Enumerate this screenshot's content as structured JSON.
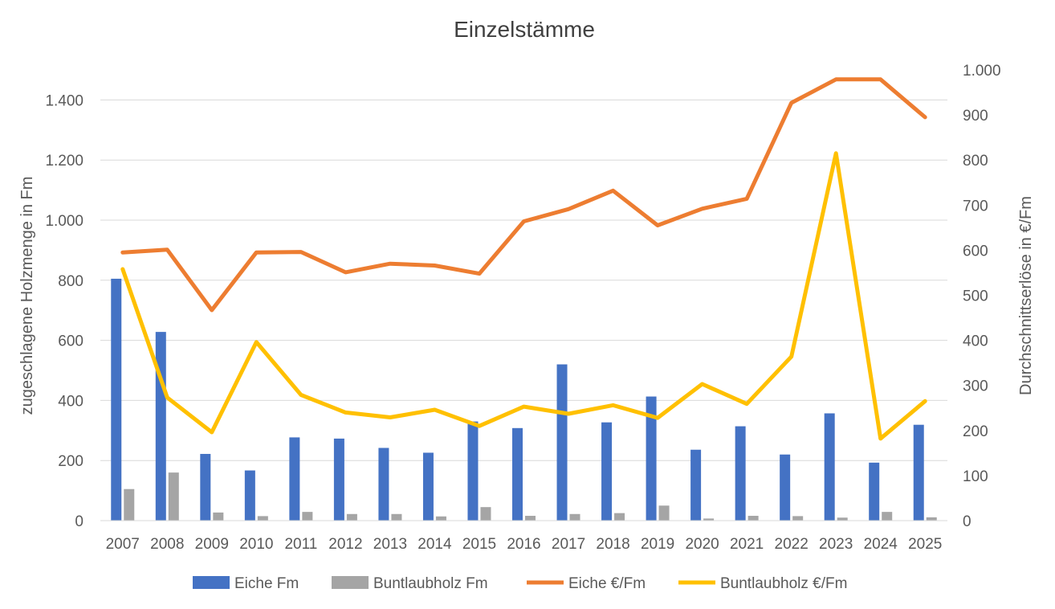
{
  "chart_data": {
    "type": "bar",
    "title": "Einzelstämme",
    "ylabel": "zugeschlagene Holzmenge in Fm",
    "y2label": "Durchschnittserlöse in €/Fm",
    "ylim": [
      0,
      1500
    ],
    "y_ticks": [
      0,
      200,
      400,
      600,
      800,
      1000,
      1200,
      1400
    ],
    "y_tick_labels": [
      "0",
      "200",
      "400",
      "600",
      "800",
      "1.000",
      "1.200",
      "1.400"
    ],
    "y2lim": [
      0,
      1000
    ],
    "y2_ticks": [
      0,
      100,
      200,
      300,
      400,
      500,
      600,
      700,
      800,
      900,
      1000
    ],
    "y2_tick_labels": [
      "0",
      "100",
      "200",
      "300",
      "400",
      "500",
      "600",
      "700",
      "800",
      "900",
      "1.000"
    ],
    "grid": true,
    "legend_position": "bottom",
    "categories": [
      "2007",
      "2008",
      "2009",
      "2010",
      "2011",
      "2012",
      "2013",
      "2014",
      "2015",
      "2016",
      "2017",
      "2018",
      "2019",
      "2020",
      "2021",
      "2022",
      "2023",
      "2024",
      "2025"
    ],
    "series": [
      {
        "name": "Eiche Fm",
        "type": "bar",
        "axis": "left",
        "color": "#4472c4",
        "values": [
          805,
          628,
          222,
          167,
          277,
          273,
          242,
          226,
          330,
          308,
          520,
          327,
          413,
          236,
          314,
          220,
          357,
          193,
          319
        ]
      },
      {
        "name": "Buntlaubholz Fm",
        "type": "bar",
        "axis": "left",
        "color": "#a5a5a5",
        "values": [
          105,
          160,
          27,
          15,
          29,
          22,
          22,
          14,
          45,
          16,
          22,
          25,
          50,
          7,
          16,
          15,
          10,
          29,
          11
        ]
      },
      {
        "name": "Eiche €/Fm",
        "type": "line",
        "axis": "right",
        "color": "#ed7d31",
        "values": [
          595,
          601,
          467,
          595,
          596,
          551,
          570,
          566,
          548,
          664,
          691,
          732,
          655,
          692,
          714,
          927,
          979,
          979,
          895
        ]
      },
      {
        "name": "Buntlaubholz €/Fm",
        "type": "line",
        "axis": "right",
        "color": "#ffc000",
        "values": [
          558,
          273,
          196,
          396,
          279,
          240,
          229,
          246,
          210,
          253,
          237,
          256,
          228,
          303,
          259,
          364,
          815,
          182,
          265
        ]
      }
    ]
  }
}
